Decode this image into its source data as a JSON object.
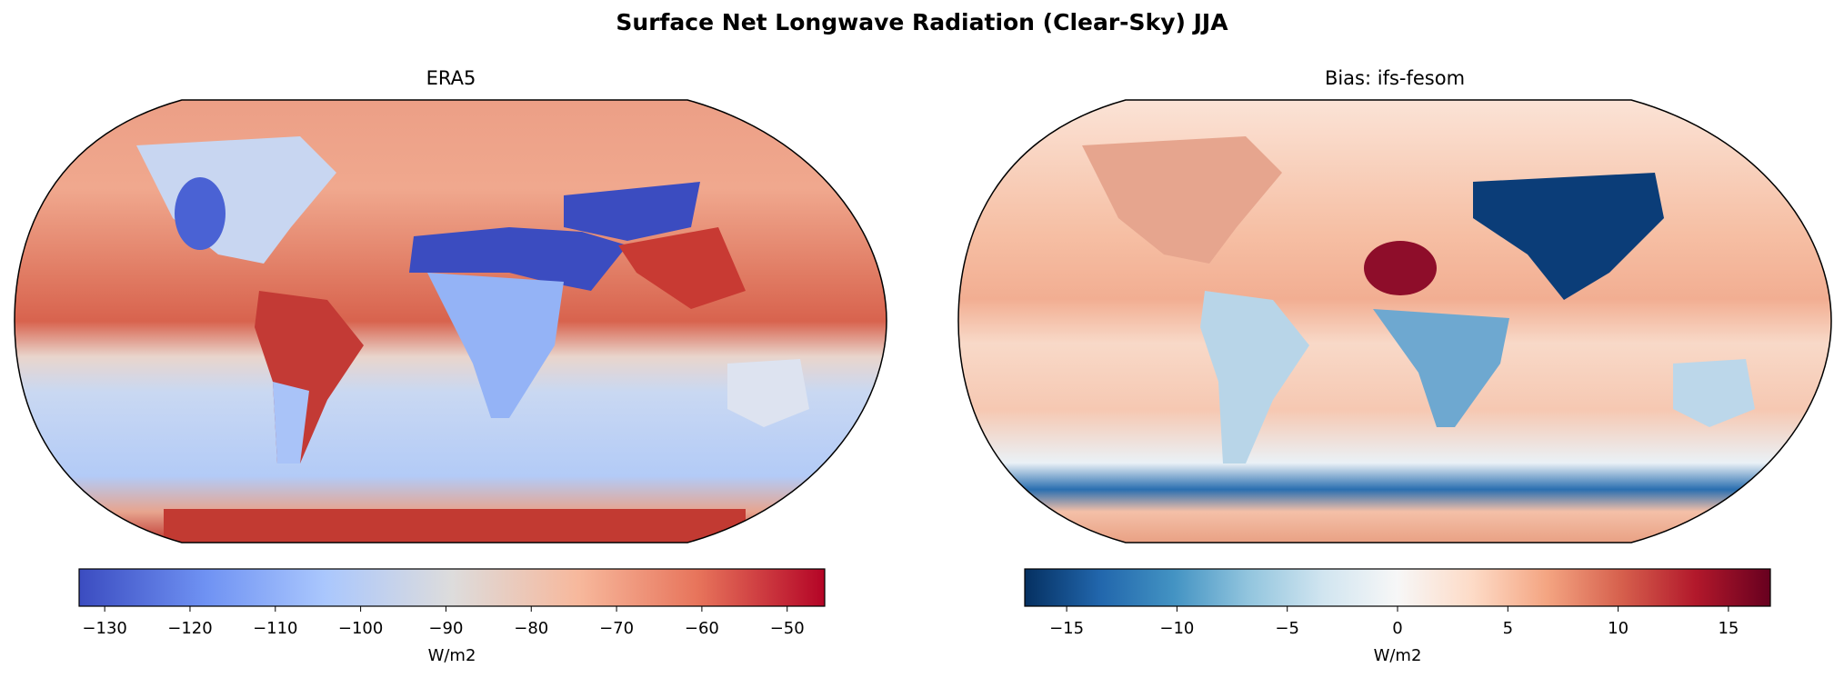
{
  "title": "Surface Net Longwave Radiation (Clear-Sky) JJA",
  "chart_data": [
    {
      "type": "heatmap",
      "projection": "Robinson world map",
      "title": "ERA5",
      "colormap": "coolwarm",
      "colorbar": {
        "label": "W/m2",
        "range": [
          -133,
          -45.6
        ],
        "ticks": [
          -130,
          -120,
          -110,
          -100,
          -90,
          -80,
          -70,
          -60,
          -50
        ],
        "tick_labels": [
          "−130",
          "−120",
          "−110",
          "−100",
          "−90",
          "−80",
          "−70",
          "−60",
          "−50"
        ],
        "colors": [
          "#3b4cc0",
          "#6f92f3",
          "#aac7fd",
          "#dddcdc",
          "#f7b89c",
          "#e7745b",
          "#b40426"
        ]
      }
    },
    {
      "type": "heatmap",
      "projection": "Robinson world map",
      "title": "Bias: ifs-fesom",
      "colormap": "RdBu_r",
      "colorbar": {
        "label": "W/m2",
        "range": [
          -16.9,
          16.9
        ],
        "ticks": [
          -15,
          -10,
          -5,
          0,
          5,
          10,
          15
        ],
        "tick_labels": [
          "−15",
          "−10",
          "−5",
          "0",
          "5",
          "10",
          "15"
        ],
        "colors": [
          "#053061",
          "#2166ac",
          "#4393c3",
          "#92c5de",
          "#d1e5f0",
          "#f7f7f7",
          "#fddbc7",
          "#f4a582",
          "#d6604d",
          "#b2182b",
          "#67001f"
        ]
      }
    }
  ]
}
